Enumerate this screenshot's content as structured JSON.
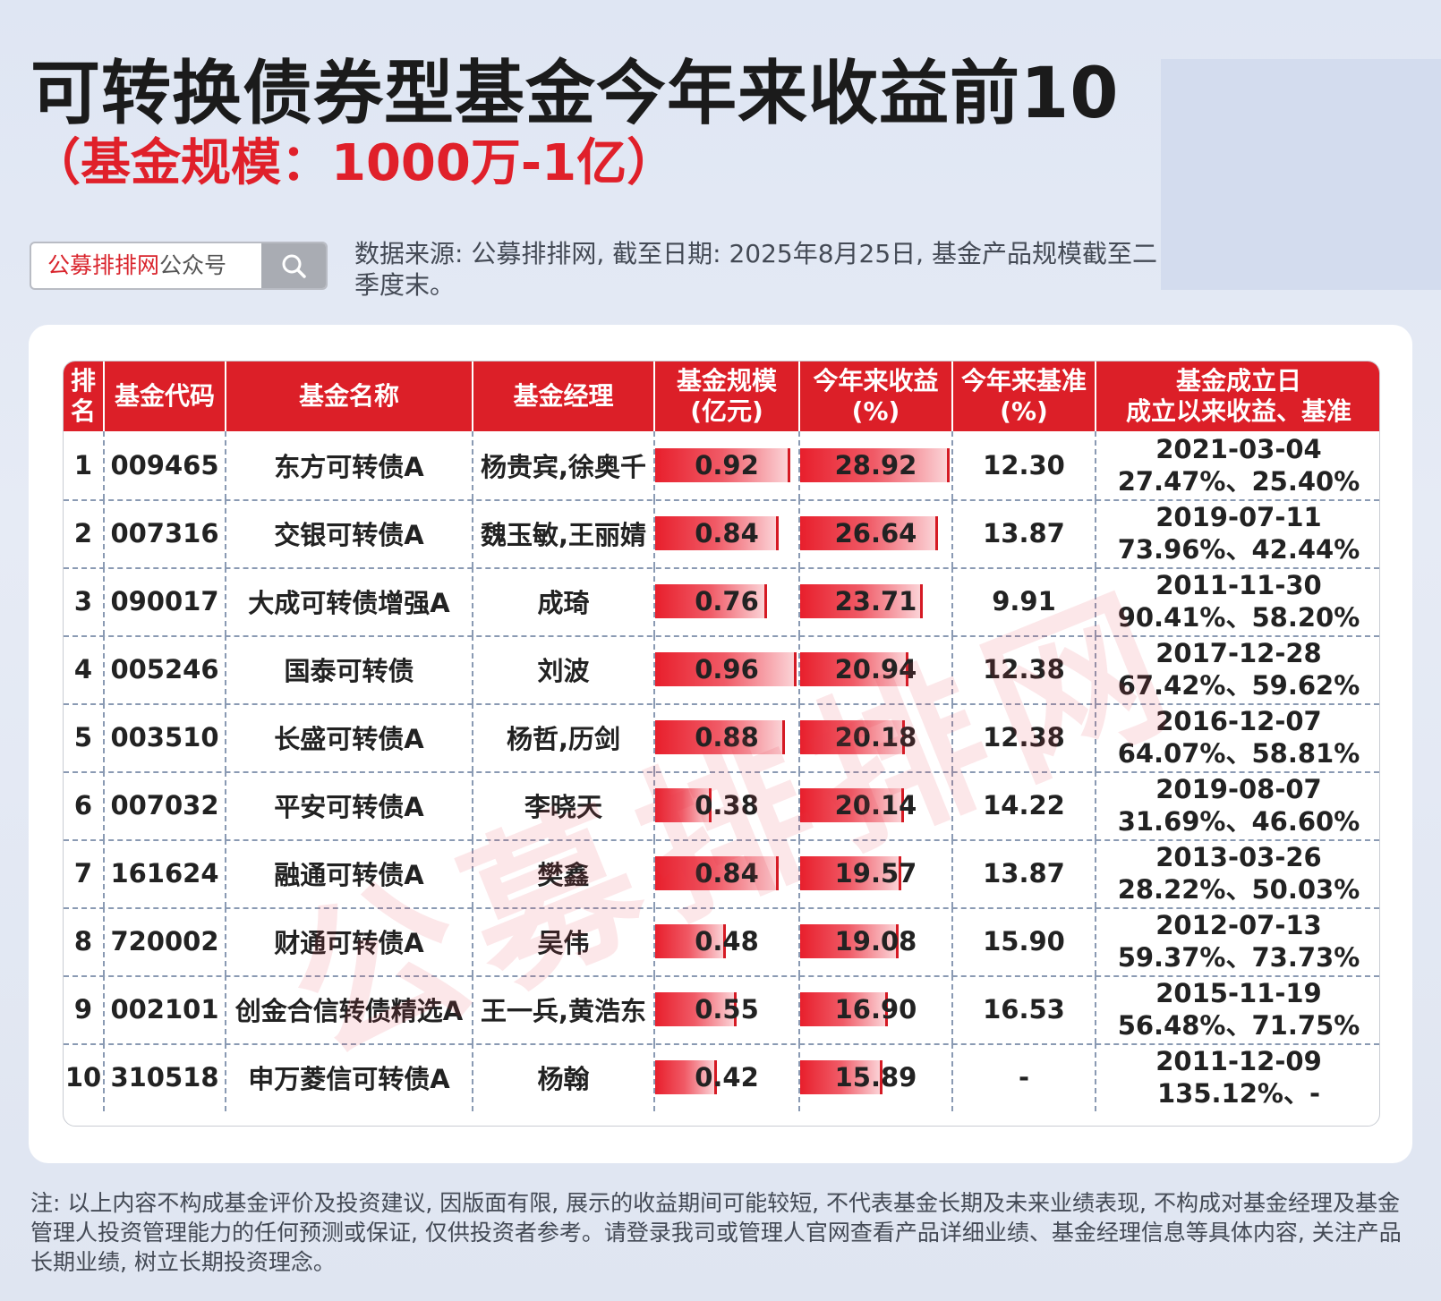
{
  "title": "可转换债券型基金今年来收益前10",
  "subtitle": "（基金规模：1000万-1亿）",
  "search": {
    "brand": "公募排排网",
    "suffix": "公众号",
    "icon": "search-icon"
  },
  "source_note": "数据来源: 公募排排网, 截至日期: 2025年8月25日, 基金产品规模截至二季度末。",
  "watermark": "公募排排网",
  "table": {
    "headers": [
      "排\n名",
      "基金代码",
      "基金名称",
      "基金经理",
      "基金规模\n(亿元)",
      "今年来收益\n(%)",
      "今年来基准\n(%)",
      "基金成立日\n成立以来收益、基准"
    ],
    "rows": [
      {
        "rank": "1",
        "code": "009465",
        "name": "东方可转债A",
        "manager": "杨贵宾,徐奥千",
        "size": "0.92",
        "ytd": "28.92",
        "bench": "12.30",
        "inception": "2021-03-04\n27.47%、25.40%"
      },
      {
        "rank": "2",
        "code": "007316",
        "name": "交银可转债A",
        "manager": "魏玉敏,王丽婧",
        "size": "0.84",
        "ytd": "26.64",
        "bench": "13.87",
        "inception": "2019-07-11\n73.96%、42.44%"
      },
      {
        "rank": "3",
        "code": "090017",
        "name": "大成可转债增强A",
        "manager": "成琦",
        "size": "0.76",
        "ytd": "23.71",
        "bench": "9.91",
        "inception": "2011-11-30\n90.41%、58.20%"
      },
      {
        "rank": "4",
        "code": "005246",
        "name": "国泰可转债",
        "manager": "刘波",
        "size": "0.96",
        "ytd": "20.94",
        "bench": "12.38",
        "inception": "2017-12-28\n67.42%、59.62%"
      },
      {
        "rank": "5",
        "code": "003510",
        "name": "长盛可转债A",
        "manager": "杨哲,历剑",
        "size": "0.88",
        "ytd": "20.18",
        "bench": "12.38",
        "inception": "2016-12-07\n64.07%、58.81%"
      },
      {
        "rank": "6",
        "code": "007032",
        "name": "平安可转债A",
        "manager": "李晓天",
        "size": "0.38",
        "ytd": "20.14",
        "bench": "14.22",
        "inception": "2019-08-07\n31.69%、46.60%"
      },
      {
        "rank": "7",
        "code": "161624",
        "name": "融通可转债A",
        "manager": "樊鑫",
        "size": "0.84",
        "ytd": "19.57",
        "bench": "13.87",
        "inception": "2013-03-26\n28.22%、50.03%"
      },
      {
        "rank": "8",
        "code": "720002",
        "name": "财通可转债A",
        "manager": "吴伟",
        "size": "0.48",
        "ytd": "19.08",
        "bench": "15.90",
        "inception": "2012-07-13\n59.37%、73.73%"
      },
      {
        "rank": "9",
        "code": "002101",
        "name": "创金合信转债精选A",
        "manager": "王一兵,黄浩东",
        "size": "0.55",
        "ytd": "16.90",
        "bench": "16.53",
        "inception": "2015-11-19\n56.48%、71.75%"
      },
      {
        "rank": "10",
        "code": "310518",
        "name": "申万菱信可转债A",
        "manager": "杨翰",
        "size": "0.42",
        "ytd": "15.89",
        "bench": "-",
        "inception": "2011-12-09\n135.12%、-"
      }
    ]
  },
  "footer_note": "注: 以上内容不构成基金评价及投资建议, 因版面有限, 展示的收益期间可能较短, 不代表基金长期及未来业绩表现, 不构成对基金经理及基金管理人投资管理能力的任何预测或保证, 仅供投资者参考。请登录我司或管理人官网查看产品详细业绩、基金经理信息等具体内容, 关注产品长期业绩, 树立长期投资理念。",
  "colors": {
    "accent_red": "#dc1f28",
    "title_red": "#e0202a"
  }
}
